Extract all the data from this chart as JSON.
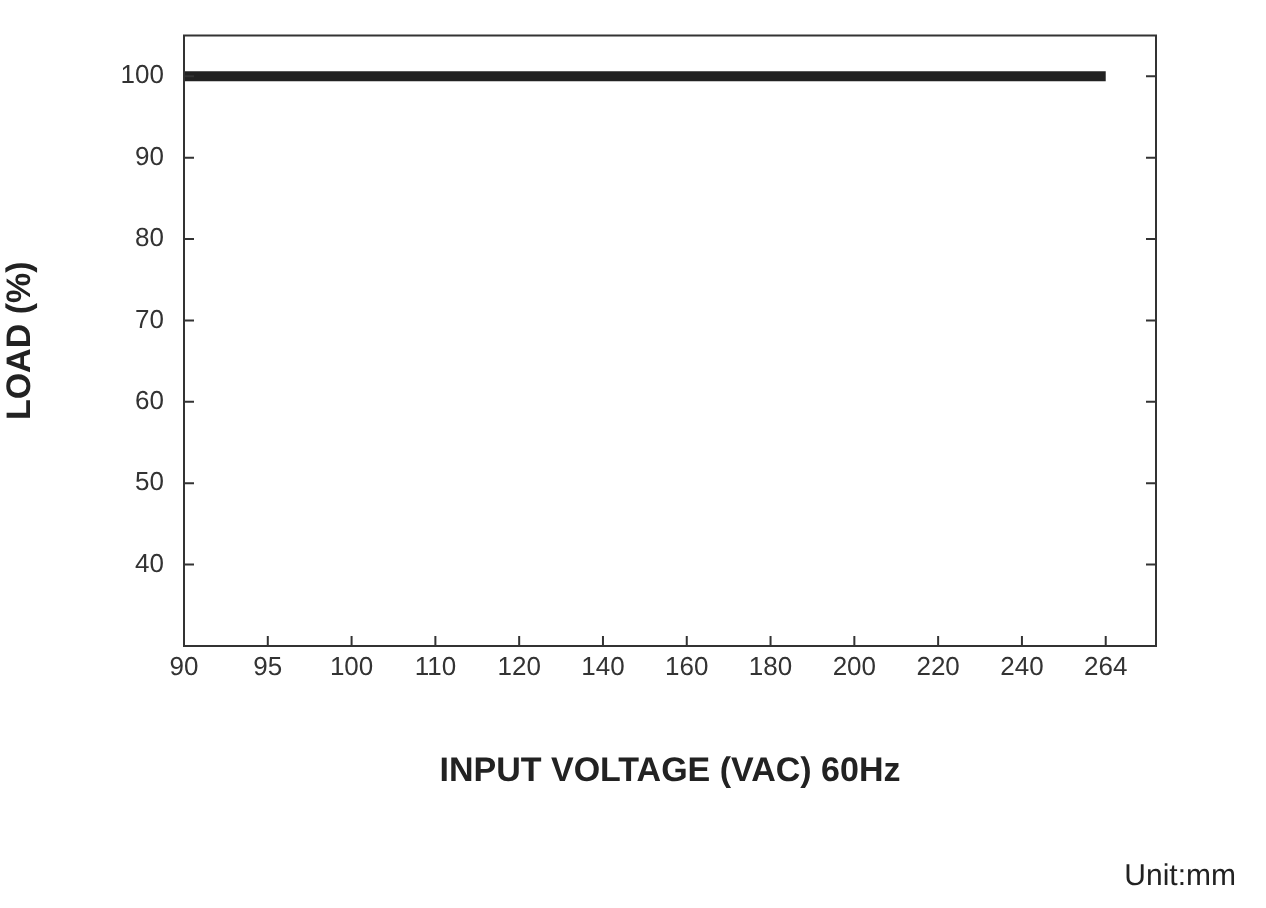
{
  "chart_data": {
    "type": "line",
    "xlabel": "INPUT VOLTAGE (VAC) 60Hz",
    "ylabel": "LOAD (%)",
    "annotations": [
      "Unit:mm"
    ],
    "categories": [
      "90",
      "95",
      "100",
      "110",
      "120",
      "140",
      "160",
      "180",
      "200",
      "220",
      "240",
      "264"
    ],
    "values": [
      100,
      100,
      100,
      100,
      100,
      100,
      100,
      100,
      100,
      100,
      100,
      100
    ],
    "color": "#222222",
    "ylim": [
      30,
      105
    ],
    "yticks": [
      40,
      50,
      60,
      70,
      80,
      90,
      100
    ],
    "grid": false,
    "legend": false,
    "marker": "none",
    "line_style": "solid"
  }
}
